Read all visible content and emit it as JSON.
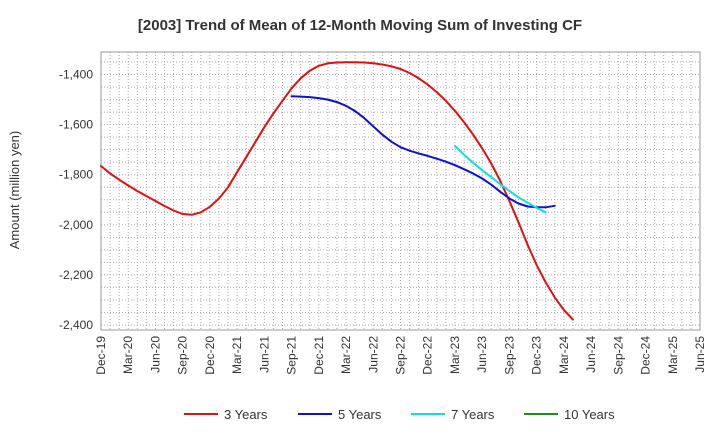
{
  "chart_data": {
    "type": "line",
    "title": "[2003]  Trend of Mean of 12-Month Moving Sum of Investing CF",
    "xlabel": "",
    "ylabel": "Amount (million yen)",
    "ylim": [
      -2420,
      -1310
    ],
    "yticks": [
      -1400,
      -1600,
      -1800,
      -2000,
      -2200,
      -2400
    ],
    "ytick_labels": [
      "-1,400",
      "-1,600",
      "-1,800",
      "-2,000",
      "-2,200",
      "-2,400"
    ],
    "xlim": [
      0,
      66
    ],
    "xticks": [
      0,
      3,
      6,
      9,
      12,
      15,
      18,
      21,
      24,
      27,
      30,
      33,
      36,
      39,
      42,
      45,
      48,
      51,
      54,
      57,
      60,
      63,
      66
    ],
    "xtick_labels": [
      "Dec-19",
      "Mar-20",
      "Jun-20",
      "Sep-20",
      "Dec-20",
      "Mar-21",
      "Jun-21",
      "Sep-21",
      "Dec-21",
      "Mar-22",
      "Jun-22",
      "Sep-22",
      "Dec-22",
      "Mar-23",
      "Jun-23",
      "Sep-23",
      "Dec-23",
      "Mar-24",
      "Jun-24",
      "Sep-24",
      "Dec-24",
      "Mar-25",
      "Jun-25"
    ],
    "grid": true,
    "legend_position": "bottom",
    "series": [
      {
        "name": "3 Years",
        "color": "#dd1111",
        "points": [
          [
            0,
            -1765
          ],
          [
            1,
            -1795
          ],
          [
            2,
            -1820
          ],
          [
            3,
            -1843
          ],
          [
            4,
            -1865
          ],
          [
            5,
            -1885
          ],
          [
            6,
            -1905
          ],
          [
            7,
            -1925
          ],
          [
            8,
            -1943
          ],
          [
            9,
            -1957
          ],
          [
            10,
            -1960
          ],
          [
            11,
            -1950
          ],
          [
            12,
            -1928
          ],
          [
            13,
            -1895
          ],
          [
            14,
            -1850
          ],
          [
            15,
            -1790
          ],
          [
            16,
            -1730
          ],
          [
            17,
            -1670
          ],
          [
            18,
            -1610
          ],
          [
            19,
            -1555
          ],
          [
            20,
            -1505
          ],
          [
            21,
            -1455
          ],
          [
            22,
            -1415
          ],
          [
            23,
            -1385
          ],
          [
            24,
            -1365
          ],
          [
            25,
            -1355
          ],
          [
            26,
            -1352
          ],
          [
            27,
            -1351
          ],
          [
            28,
            -1351
          ],
          [
            29,
            -1352
          ],
          [
            30,
            -1355
          ],
          [
            31,
            -1360
          ],
          [
            32,
            -1367
          ],
          [
            33,
            -1378
          ],
          [
            34,
            -1394
          ],
          [
            35,
            -1415
          ],
          [
            36,
            -1440
          ],
          [
            37,
            -1470
          ],
          [
            38,
            -1505
          ],
          [
            39,
            -1545
          ],
          [
            40,
            -1590
          ],
          [
            41,
            -1640
          ],
          [
            42,
            -1695
          ],
          [
            43,
            -1755
          ],
          [
            44,
            -1825
          ],
          [
            45,
            -1905
          ],
          [
            46,
            -1990
          ],
          [
            47,
            -2080
          ],
          [
            48,
            -2160
          ],
          [
            49,
            -2230
          ],
          [
            50,
            -2290
          ],
          [
            51,
            -2340
          ],
          [
            52,
            -2378
          ]
        ]
      },
      {
        "name": "5 Years",
        "color": "#1111cc",
        "points": [
          [
            21,
            -1487
          ],
          [
            22,
            -1488
          ],
          [
            23,
            -1490
          ],
          [
            24,
            -1494
          ],
          [
            25,
            -1500
          ],
          [
            26,
            -1510
          ],
          [
            27,
            -1525
          ],
          [
            28,
            -1546
          ],
          [
            29,
            -1574
          ],
          [
            30,
            -1607
          ],
          [
            31,
            -1640
          ],
          [
            32,
            -1668
          ],
          [
            33,
            -1690
          ],
          [
            34,
            -1704
          ],
          [
            35,
            -1715
          ],
          [
            36,
            -1725
          ],
          [
            37,
            -1736
          ],
          [
            38,
            -1748
          ],
          [
            39,
            -1762
          ],
          [
            40,
            -1778
          ],
          [
            41,
            -1795
          ],
          [
            42,
            -1815
          ],
          [
            43,
            -1840
          ],
          [
            44,
            -1868
          ],
          [
            45,
            -1895
          ],
          [
            46,
            -1915
          ],
          [
            47,
            -1927
          ],
          [
            48,
            -1930
          ],
          [
            49,
            -1930
          ],
          [
            50,
            -1924
          ]
        ]
      },
      {
        "name": "7 Years",
        "color": "#11dddd",
        "points": [
          [
            39,
            -1685
          ],
          [
            40,
            -1720
          ],
          [
            41,
            -1752
          ],
          [
            42,
            -1782
          ],
          [
            43,
            -1810
          ],
          [
            44,
            -1838
          ],
          [
            45,
            -1865
          ],
          [
            46,
            -1890
          ],
          [
            47,
            -1912
          ],
          [
            48,
            -1932
          ],
          [
            49,
            -1950
          ]
        ]
      },
      {
        "name": "10 Years",
        "color": "#228822",
        "points": []
      }
    ]
  }
}
